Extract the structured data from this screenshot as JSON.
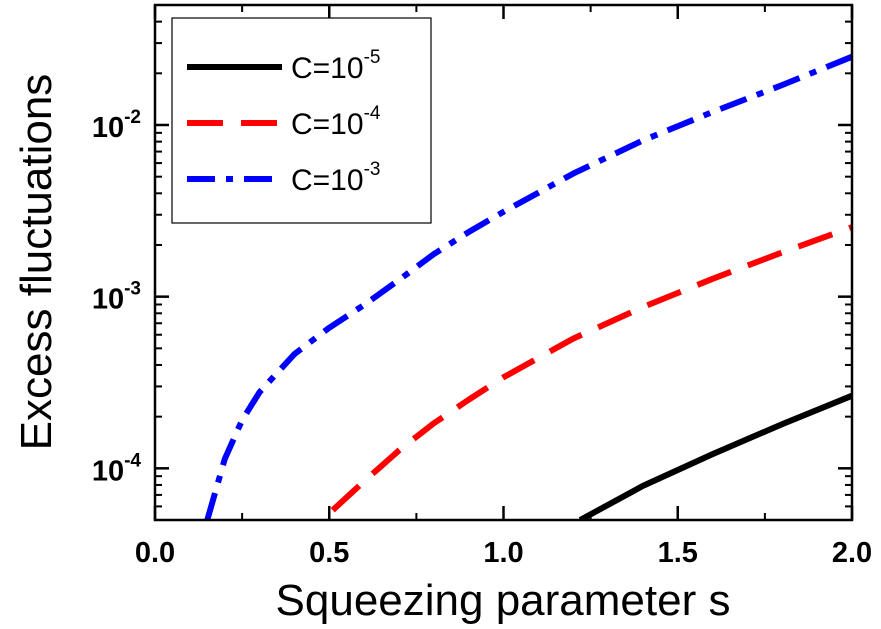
{
  "chart_data": {
    "type": "line",
    "xlabel": "Squeezing parameter s",
    "ylabel": "Excess fluctuations",
    "xlim": [
      0.0,
      2.0
    ],
    "ylim": [
      5e-05,
      0.05
    ],
    "yscale": "log",
    "grid": false,
    "legend_position": "top-left",
    "x_ticks": [
      {
        "value": 0.0,
        "label": "0.0"
      },
      {
        "value": 0.5,
        "label": "0.5"
      },
      {
        "value": 1.0,
        "label": "1.0"
      },
      {
        "value": 1.5,
        "label": "1.5"
      },
      {
        "value": 2.0,
        "label": "2.0"
      }
    ],
    "y_ticks": [
      {
        "value": 0.0001,
        "base": "10",
        "exp": "-4"
      },
      {
        "value": 0.001,
        "base": "10",
        "exp": "-3"
      },
      {
        "value": 0.01,
        "base": "10",
        "exp": "-2"
      }
    ],
    "series": [
      {
        "label_base": "C=10",
        "label_exp": "-5",
        "color": "#000000",
        "style": "solid",
        "x": [
          1.22,
          1.4,
          1.6,
          1.8,
          2.0
        ],
        "y": [
          5e-05,
          7.9e-05,
          0.000121,
          0.000181,
          0.000265
        ]
      },
      {
        "label_base": "C=10",
        "label_exp": "-4",
        "color": "#ff0000",
        "style": "dashed",
        "x": [
          0.51,
          0.6,
          0.7,
          0.8,
          0.9,
          1.0,
          1.2,
          1.4,
          1.6,
          1.8,
          2.0
        ],
        "y": [
          5.7e-05,
          8.4e-05,
          0.000127,
          0.000183,
          0.000251,
          0.000339,
          0.00057,
          0.000869,
          0.00127,
          0.00181,
          0.00254
        ]
      },
      {
        "label_base": "C=10",
        "label_exp": "-3",
        "color": "#0000ff",
        "style": "dashdot",
        "x": [
          0.15,
          0.2,
          0.25,
          0.3,
          0.4,
          0.5,
          0.6,
          0.7,
          0.8,
          0.9,
          1.0,
          1.2,
          1.4,
          1.6,
          1.8,
          2.0
        ],
        "y": [
          5e-05,
          0.000113,
          0.000191,
          0.000278,
          0.000463,
          0.000659,
          0.000895,
          0.00125,
          0.00177,
          0.00238,
          0.00312,
          0.00521,
          0.00813,
          0.0119,
          0.0171,
          0.025
        ]
      }
    ]
  }
}
